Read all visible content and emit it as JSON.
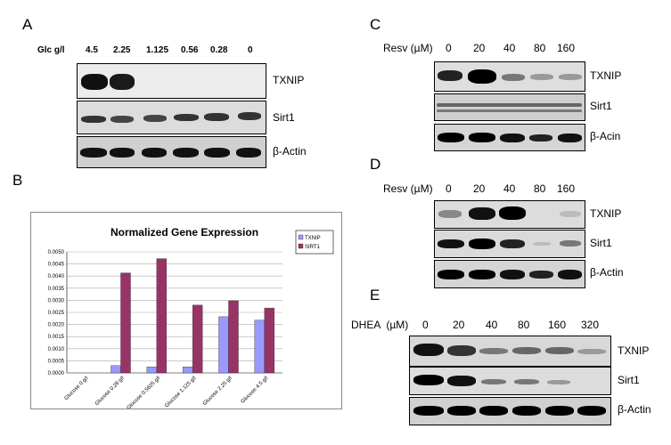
{
  "panels": {
    "A": {
      "label": "A",
      "condition_label": "Glc g/l",
      "lanes": [
        "4.5",
        "2.25",
        "1.125",
        "0.56",
        "0.28",
        "0"
      ],
      "rows": [
        "TXNIP",
        "Sirt1",
        "β-Actin"
      ]
    },
    "B": {
      "label": "B"
    },
    "C": {
      "label": "C",
      "condition_label": "Resv (µM)",
      "lanes": [
        "0",
        "20",
        "40",
        "80",
        "160"
      ],
      "rows": [
        "TXNIP",
        "Sirt1",
        "β-Acin"
      ]
    },
    "D": {
      "label": "D",
      "condition_label": "Resv (µM)",
      "lanes": [
        "0",
        "20",
        "40",
        "80",
        "160"
      ],
      "rows": [
        "TXNIP",
        "Sirt1",
        "β-Actin"
      ]
    },
    "E": {
      "label": "E",
      "condition_label": "DHEA  (µM)",
      "lanes": [
        "0",
        "20",
        "40",
        "80",
        "160",
        "320"
      ],
      "rows": [
        "TXNIP",
        "Sirt1",
        "β-Actin"
      ]
    }
  },
  "chart_data": {
    "type": "bar",
    "title": "Normalized Gene Expression",
    "categories": [
      "Glucose 0 g/l",
      "Glucose 0.28 g/l",
      "Glucose 0.5625 g/l",
      "Glucose 1.125 g/l",
      "Glucose 2.25 g/l",
      "Glucose 4.5 g/l"
    ],
    "series": [
      {
        "name": "TXNIP",
        "color": "#9999ff",
        "values": [
          0.0,
          0.0003,
          0.00025,
          0.00025,
          0.00232,
          0.00218
        ]
      },
      {
        "name": "SIRT1",
        "color": "#993366",
        "values": [
          0.0,
          0.00413,
          0.00472,
          0.0028,
          0.00298,
          0.00268
        ]
      }
    ],
    "ylim": [
      0,
      0.005
    ],
    "yticks": [
      "0.0000",
      "0.0005",
      "0.0010",
      "0.0015",
      "0.0020",
      "0.0025",
      "0.0030",
      "0.0035",
      "0.0040",
      "0.0045",
      "0.0050"
    ],
    "grid": true,
    "legend": "top-right"
  }
}
